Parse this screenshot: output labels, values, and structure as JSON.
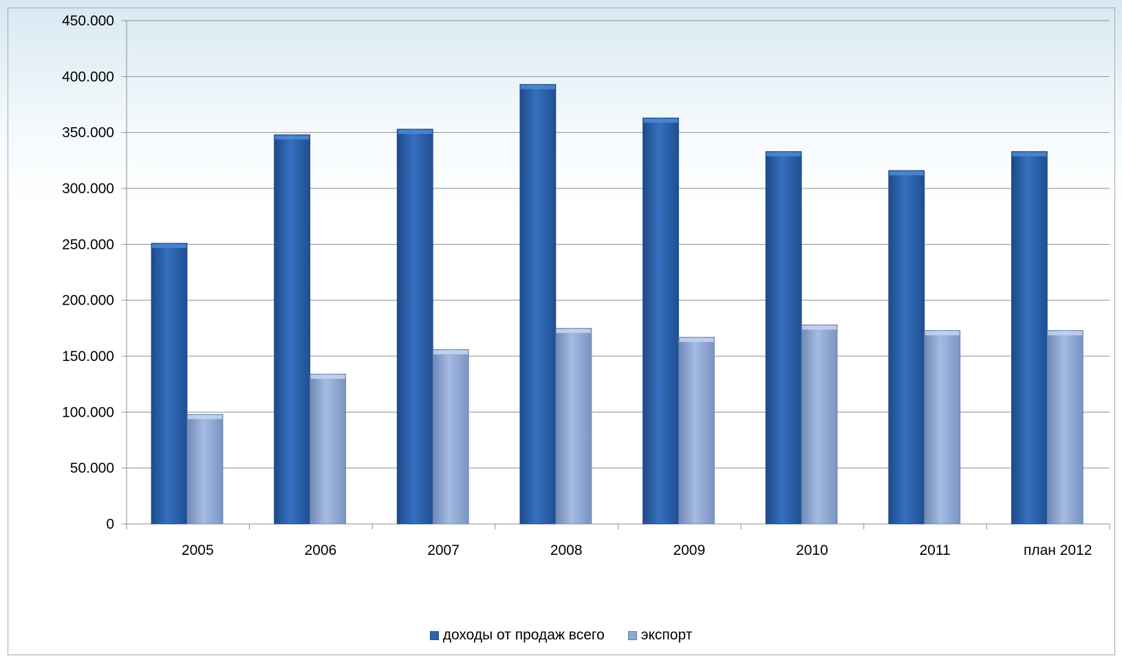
{
  "chart_data": {
    "type": "bar",
    "title": "",
    "xlabel": "",
    "ylabel": "",
    "categories": [
      "2005",
      "2006",
      "2007",
      "2008",
      "2009",
      "2010",
      "2011",
      "план 2012"
    ],
    "series": [
      {
        "name": "доходы от продаж всего",
        "color": "#2e65ae",
        "values": [
          251000,
          348000,
          353000,
          393000,
          363000,
          333000,
          316000,
          333000
        ]
      },
      {
        "name": "экспорт",
        "color": "#8ea8d6",
        "values": [
          98000,
          134000,
          156000,
          175000,
          167000,
          178000,
          173000,
          173000
        ]
      }
    ],
    "ylim": [
      0,
      450000
    ],
    "yticks": [
      0,
      50000,
      100000,
      150000,
      200000,
      250000,
      300000,
      350000,
      400000,
      450000
    ],
    "ytick_labels": [
      "0",
      "50.000",
      "100.000",
      "150.000",
      "200.000",
      "250.000",
      "300.000",
      "350.000",
      "400.000",
      "450.000"
    ],
    "grid": true,
    "legend_position": "bottom"
  }
}
